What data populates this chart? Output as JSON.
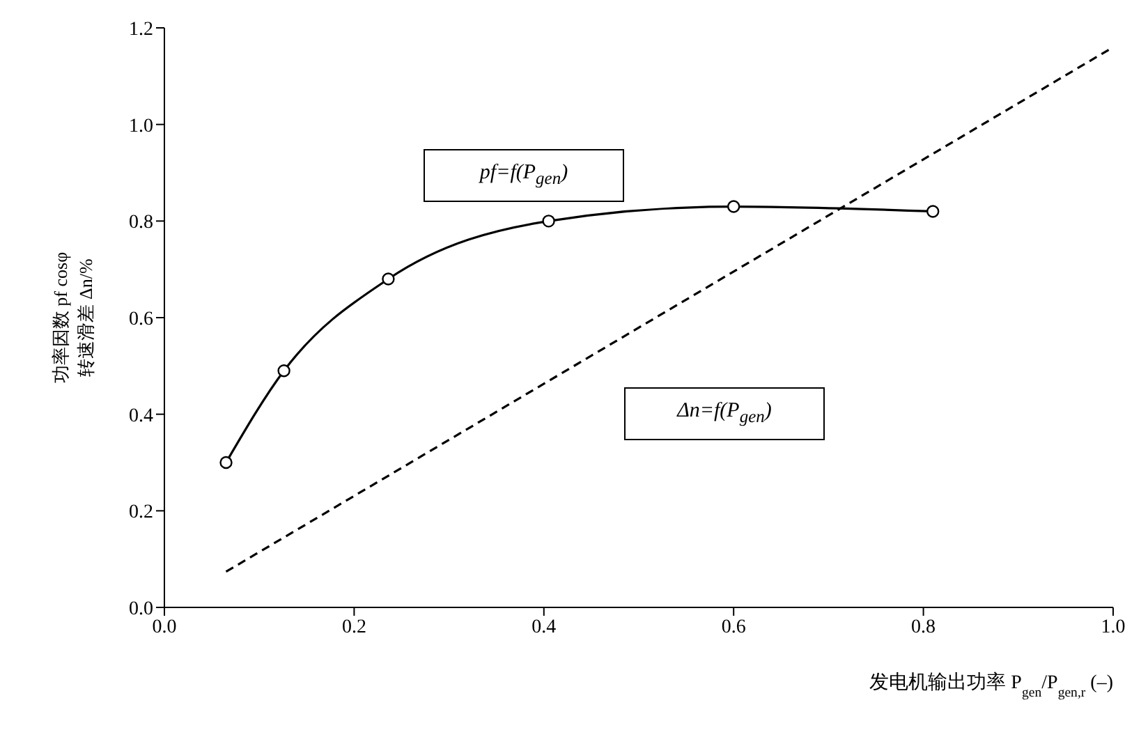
{
  "chart_data": {
    "type": "line",
    "xlabel": "发电机输出功率 P$_{gen}$/P$_{gen,r}$ (–)",
    "ylabel": "功率因数 pf cosφ\n转速滑差 Δn/%",
    "xlim": [
      0,
      1.0
    ],
    "ylim": [
      0,
      1.2
    ],
    "xticks": [
      {
        "value": 0,
        "label": "0.0"
      },
      {
        "value": 0.2,
        "label": "0.2"
      },
      {
        "value": 0.4,
        "label": "0.4"
      },
      {
        "value": 0.6,
        "label": "0.6"
      },
      {
        "value": 0.8,
        "label": "0.8"
      },
      {
        "value": 1,
        "label": "1.0"
      }
    ],
    "yticks": [
      {
        "value": 0,
        "label": "0.0"
      },
      {
        "value": 0.2,
        "label": "0.2"
      },
      {
        "value": 0.4,
        "label": "0.4"
      },
      {
        "value": 0.6,
        "label": "0.6"
      },
      {
        "value": 0.8,
        "label": "0.8"
      },
      {
        "value": 1,
        "label": "1.0"
      },
      {
        "value": 1.2,
        "label": "1.2"
      }
    ],
    "grid": false,
    "legend": false,
    "series": [
      {
        "color": "#000000",
        "marker": "circle",
        "line_style": "solid",
        "x": [
          0.065,
          0.126,
          0.236,
          0.405,
          0.6,
          0.81
        ],
        "values": [
          0.3,
          0.49,
          0.68,
          0.8,
          0.83,
          0.82
        ]
      },
      {
        "color": "#000000",
        "marker": "none",
        "line_style": "dashed",
        "x": [
          0.065,
          1.0
        ],
        "values": [
          0.074,
          1.16
        ]
      }
    ],
    "annotations": [
      "pf=f(P$_{gen}$)",
      "Δn=f(P$_{gen}$)"
    ]
  }
}
